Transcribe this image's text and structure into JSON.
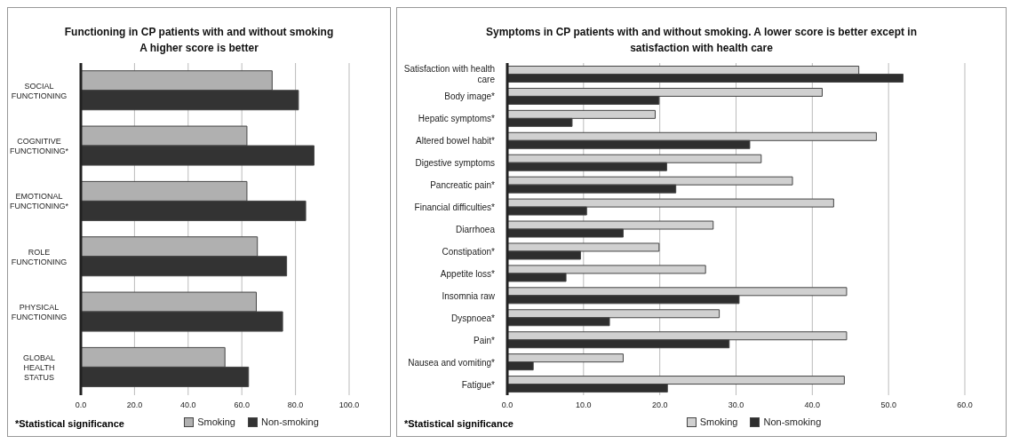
{
  "chart_data": [
    {
      "type": "bar",
      "orientation": "horizontal",
      "title": "Functioning in CP patients with and without smoking",
      "subtitle": "A higher score is better",
      "categories": [
        "SOCIAL FUNCTIONING",
        "COGNITIVE FUNCTIONING*",
        "EMOTIONAL FUNCTIONING*",
        "ROLE FUNCTIONING",
        "PHYSICAL FUNCTIONING",
        "GLOBAL HEALTH STATUS"
      ],
      "series": [
        {
          "name": "Smoking",
          "color": "#b0b0b0",
          "values": [
            71.3,
            61.9,
            61.9,
            65.8,
            65.4,
            53.7
          ]
        },
        {
          "name": "Non-smoking",
          "color": "#333333",
          "values": [
            81.1,
            86.9,
            83.8,
            76.7,
            75.2,
            62.5
          ]
        }
      ],
      "xlim": [
        0,
        100
      ],
      "xticks": [
        {
          "value": 0,
          "label": "0.0"
        },
        {
          "value": 20,
          "label": "20.0"
        },
        {
          "value": 40,
          "label": "40.0"
        },
        {
          "value": 60,
          "label": "60.0"
        },
        {
          "value": 80,
          "label": "80.0"
        },
        {
          "value": 100,
          "label": "100.0"
        }
      ],
      "grid": "x",
      "legend": "bottom",
      "annotations": [
        "*Statistical significance"
      ]
    },
    {
      "type": "bar",
      "orientation": "horizontal",
      "title": "Symptoms in CP patients with and without smoking. A lower score is better except in satisfaction with health care",
      "categories": [
        "Satisfaction with health care",
        "Body image*",
        "Hepatic symptoms*",
        "Altered bowel habit*",
        "Digestive symptoms",
        "Pancreatic pain*",
        "Financial difficulties*",
        "Diarrhoea",
        "Constipation*",
        "Appetite loss*",
        "Insomnia raw",
        "Dyspnoea*",
        "Pain*",
        "Nausea and vomiting*",
        "Fatigue*"
      ],
      "series": [
        {
          "name": "Smoking",
          "color": "#d0d0d0",
          "values": [
            46.1,
            41.3,
            19.4,
            48.4,
            33.3,
            37.4,
            42.8,
            27.0,
            19.9,
            26.0,
            44.5,
            27.8,
            44.5,
            15.2,
            44.2
          ]
        },
        {
          "name": "Non-smoking",
          "color": "#2e2e2e",
          "values": [
            51.9,
            19.9,
            8.5,
            31.8,
            20.9,
            22.1,
            10.4,
            15.2,
            9.6,
            7.7,
            30.4,
            13.4,
            29.1,
            3.4,
            21.0
          ]
        }
      ],
      "xlim": [
        0,
        60
      ],
      "xticks": [
        {
          "value": 0,
          "label": "0.0"
        },
        {
          "value": 10,
          "label": "10.0"
        },
        {
          "value": 20,
          "label": "20.0"
        },
        {
          "value": 30,
          "label": "30.0"
        },
        {
          "value": 40,
          "label": "40.0"
        },
        {
          "value": 50,
          "label": "50.0"
        },
        {
          "value": 60,
          "label": "60.0"
        }
      ],
      "grid": "x",
      "legend": "bottom",
      "annotations": [
        "*Statistical significance"
      ]
    }
  ]
}
